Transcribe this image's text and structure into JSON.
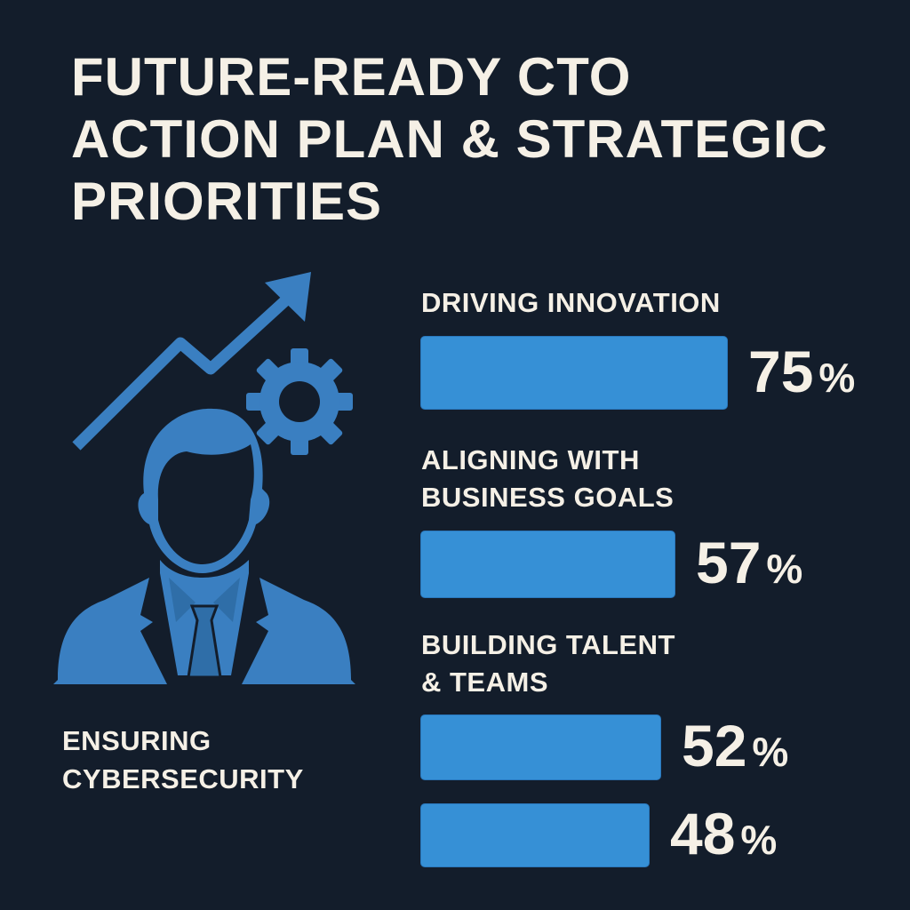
{
  "title": [
    "FUTURE-READY CTO",
    "ACTION PLAN & STRATEGIC",
    "PRIORITIES"
  ],
  "colors": {
    "background": "#131d2b",
    "bar": "#3690d6",
    "icon": "#3a7fc1",
    "text": "#f5f0e6"
  },
  "icon": {
    "name": "cto-person-growth-gear-icon"
  },
  "side_label": [
    "ENSURING",
    "CYBERSECURITY"
  ],
  "chart_data": {
    "type": "bar",
    "orientation": "horizontal",
    "categories": [
      "DRIVING INNOVATION",
      "ALIGNING WITH BUSINESS GOALS",
      "BUILDING TALENT & TEAMS",
      "ENSURING CYBERSECURITY"
    ],
    "values": [
      75,
      57,
      52,
      48
    ],
    "value_labels": [
      "75",
      "57",
      "52",
      "48"
    ],
    "unit": "%",
    "category_label_lines": [
      [
        "DRIVING INNOVATION"
      ],
      [
        "ALIGNING WITH",
        "BUSINESS GOALS"
      ],
      [
        "BUILDING TALENT",
        "& TEAMS"
      ],
      []
    ],
    "grid": false,
    "legend": "none"
  }
}
